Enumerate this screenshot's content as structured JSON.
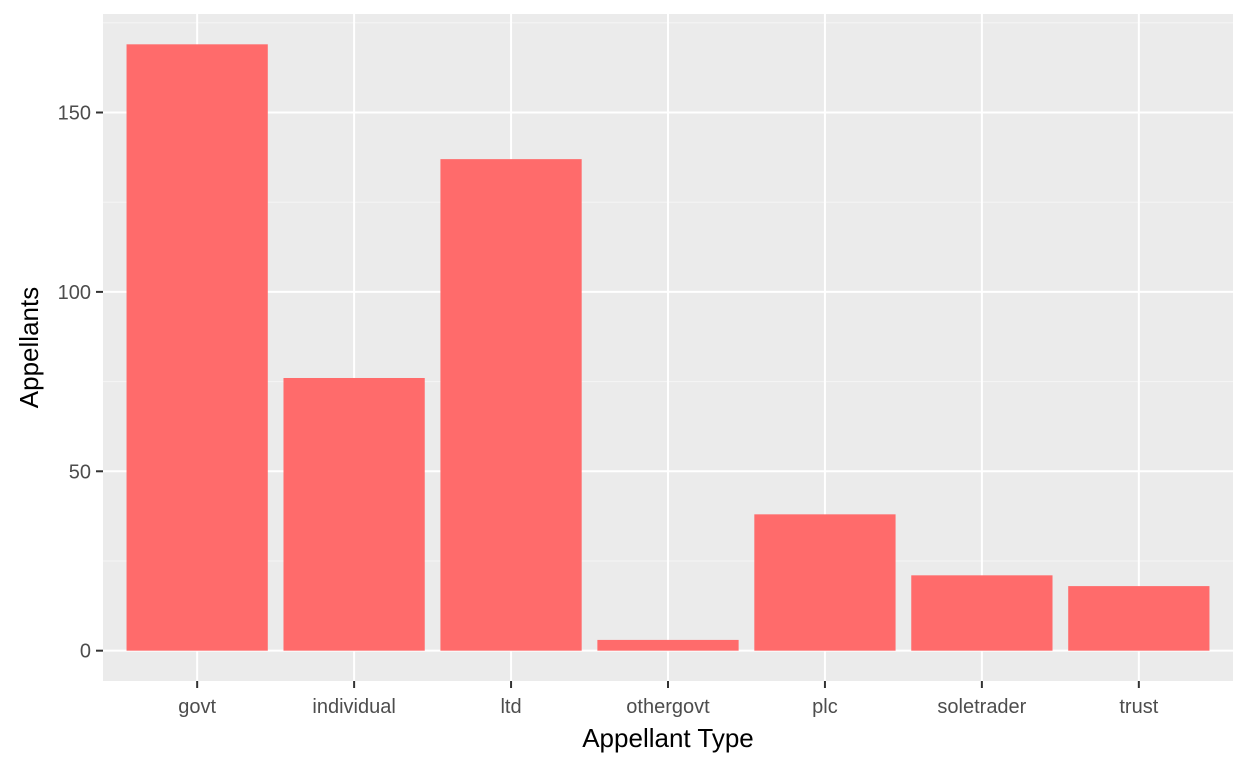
{
  "chart_data": {
    "type": "bar",
    "title": "",
    "xlabel": "Appellant Type",
    "ylabel": "Appellants",
    "categories": [
      "govt",
      "individual",
      "ltd",
      "othergovt",
      "plc",
      "soletrader",
      "trust"
    ],
    "values": [
      169,
      76,
      137,
      3,
      38,
      21,
      18
    ],
    "ylim": [
      -8.45,
      177.45
    ],
    "y_ticks": [
      0,
      50,
      100,
      150
    ],
    "y_tick_labels": [
      "0",
      "50",
      "100",
      "150"
    ],
    "grid": true,
    "legend": "none"
  },
  "colors": {
    "bar": "#ff6b6b",
    "panel_background": "#ebebeb",
    "grid_major": "#ffffff",
    "grid_minor": "#f5f5f5",
    "tick_text": "#4d4d4d",
    "axis_title": "#000000",
    "tick_mark": "#333333"
  }
}
